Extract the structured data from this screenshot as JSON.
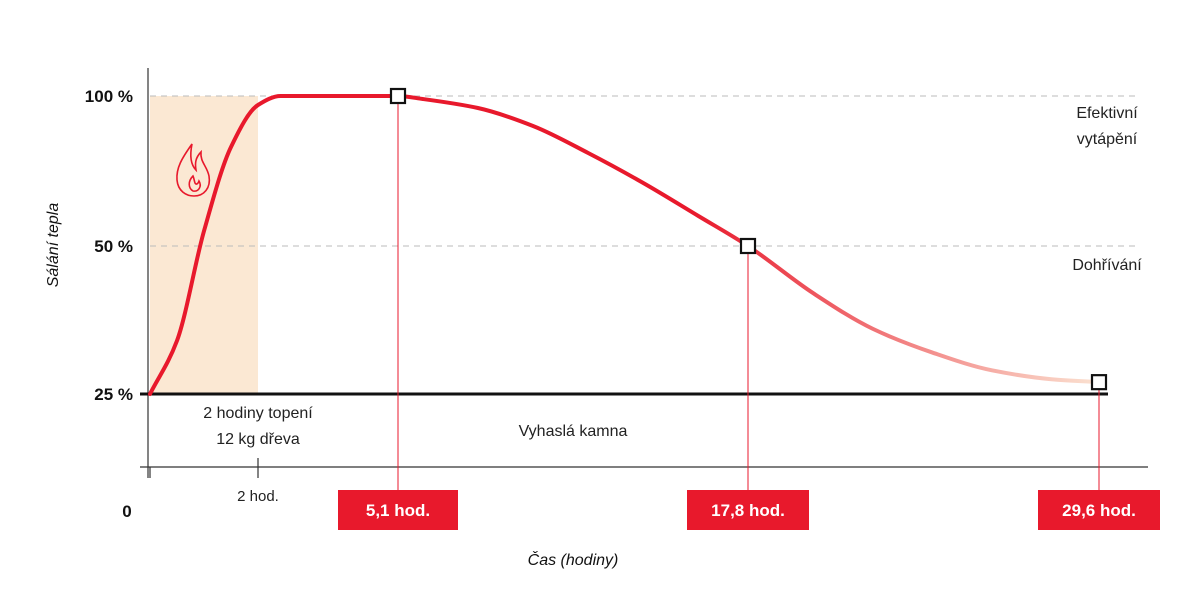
{
  "chart_data": {
    "type": "line",
    "ylabel": "Sálání tepla",
    "xlabel": "Čas (hodiny)",
    "y_ticks": [
      {
        "value": 100,
        "label": "100 %"
      },
      {
        "value": 50,
        "label": "50 %"
      },
      {
        "value": 25,
        "label": "25 %"
      }
    ],
    "x_origin_label": "0",
    "x_ticks": [
      {
        "value": 2,
        "label": "2 hod."
      }
    ],
    "highlighted_points": [
      {
        "x": 5.1,
        "y": 100,
        "label": "5,1 hod."
      },
      {
        "x": 17.8,
        "y": 50,
        "label": "17,8 hod."
      },
      {
        "x": 29.6,
        "y": 27,
        "label": "29,6 hod."
      }
    ],
    "series": [
      {
        "x": [
          0,
          0.5,
          1,
          1.5,
          2,
          2.5,
          3,
          3.5,
          4,
          5.1,
          6,
          8,
          10,
          12,
          14,
          16,
          17.8,
          20,
          22,
          24,
          26,
          28,
          29.6
        ],
        "y": [
          25,
          34,
          55,
          83,
          97,
          100,
          100,
          100,
          100,
          100,
          99,
          96,
          90,
          81,
          71,
          60,
          50,
          42,
          36,
          32,
          29,
          27.5,
          27
        ]
      }
    ],
    "annotations": {
      "heating_phase": [
        "2 hodiny topení",
        "12 kg dřeva"
      ],
      "cooling_phase": "Vyhaslá kamna",
      "zone_upper": [
        "Efektivní",
        "vytápění"
      ],
      "zone_lower": "Dohřívání"
    },
    "highlight_box_color": "#e8192c",
    "curve_color": "#e8192c",
    "curve_fade_color": "#fbe3d2",
    "heating_band_color": "#fbe8d3",
    "flame_icon": "flame-icon",
    "grid": false
  }
}
